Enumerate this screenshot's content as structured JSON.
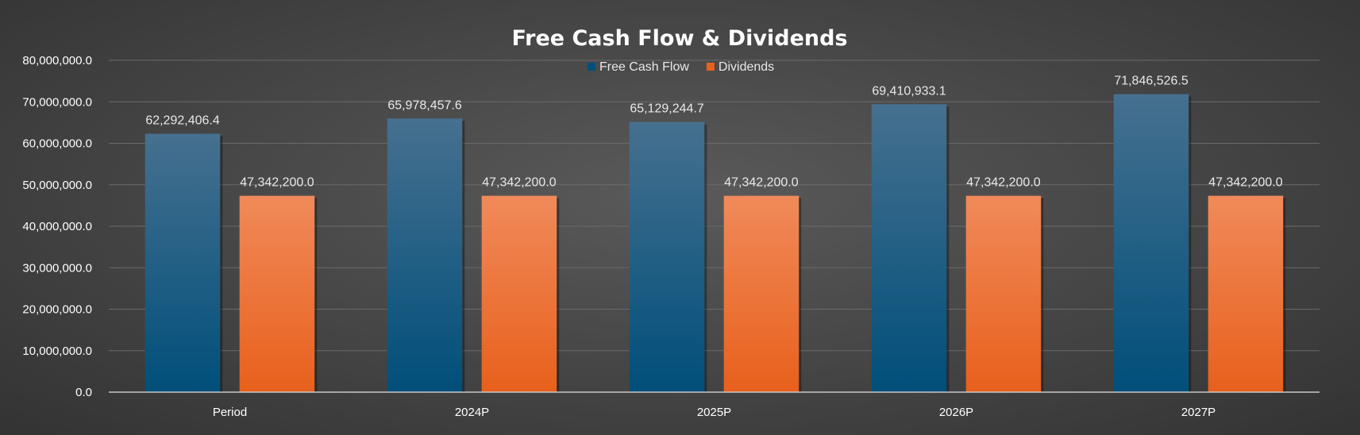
{
  "chart_data": {
    "type": "bar",
    "title": "Free Cash Flow & Dividends",
    "categories": [
      "Period",
      "2024P",
      "2025P",
      "2026P",
      "2027P"
    ],
    "series": [
      {
        "name": "Free Cash Flow",
        "values": [
          62292406.4,
          65978457.6,
          65129244.7,
          69410933.1,
          71846526.5
        ],
        "labels": [
          "62,292,406.4",
          "65,978,457.6",
          "65,129,244.7",
          "69,410,933.1",
          "71,846,526.5"
        ],
        "color_top": "#46708f",
        "color_bottom": "#004f7a"
      },
      {
        "name": "Dividends",
        "values": [
          47342200.0,
          47342200.0,
          47342200.0,
          47342200.0,
          47342200.0
        ],
        "labels": [
          "47,342,200.0",
          "47,342,200.0",
          "47,342,200.0",
          "47,342,200.0",
          "47,342,200.0"
        ],
        "color_top": "#f08a5a",
        "color_bottom": "#e8601c"
      }
    ],
    "ylim": [
      0,
      80000000
    ],
    "yticks": [
      0,
      10000000,
      20000000,
      30000000,
      40000000,
      50000000,
      60000000,
      70000000,
      80000000
    ],
    "ytick_labels": [
      "0.0",
      "10,000,000.0",
      "20,000,000.0",
      "30,000,000.0",
      "40,000,000.0",
      "50,000,000.0",
      "60,000,000.0",
      "70,000,000.0",
      "80,000,000.0"
    ],
    "xlabel": "",
    "ylabel": "",
    "grid": true,
    "legend": "top-center"
  }
}
